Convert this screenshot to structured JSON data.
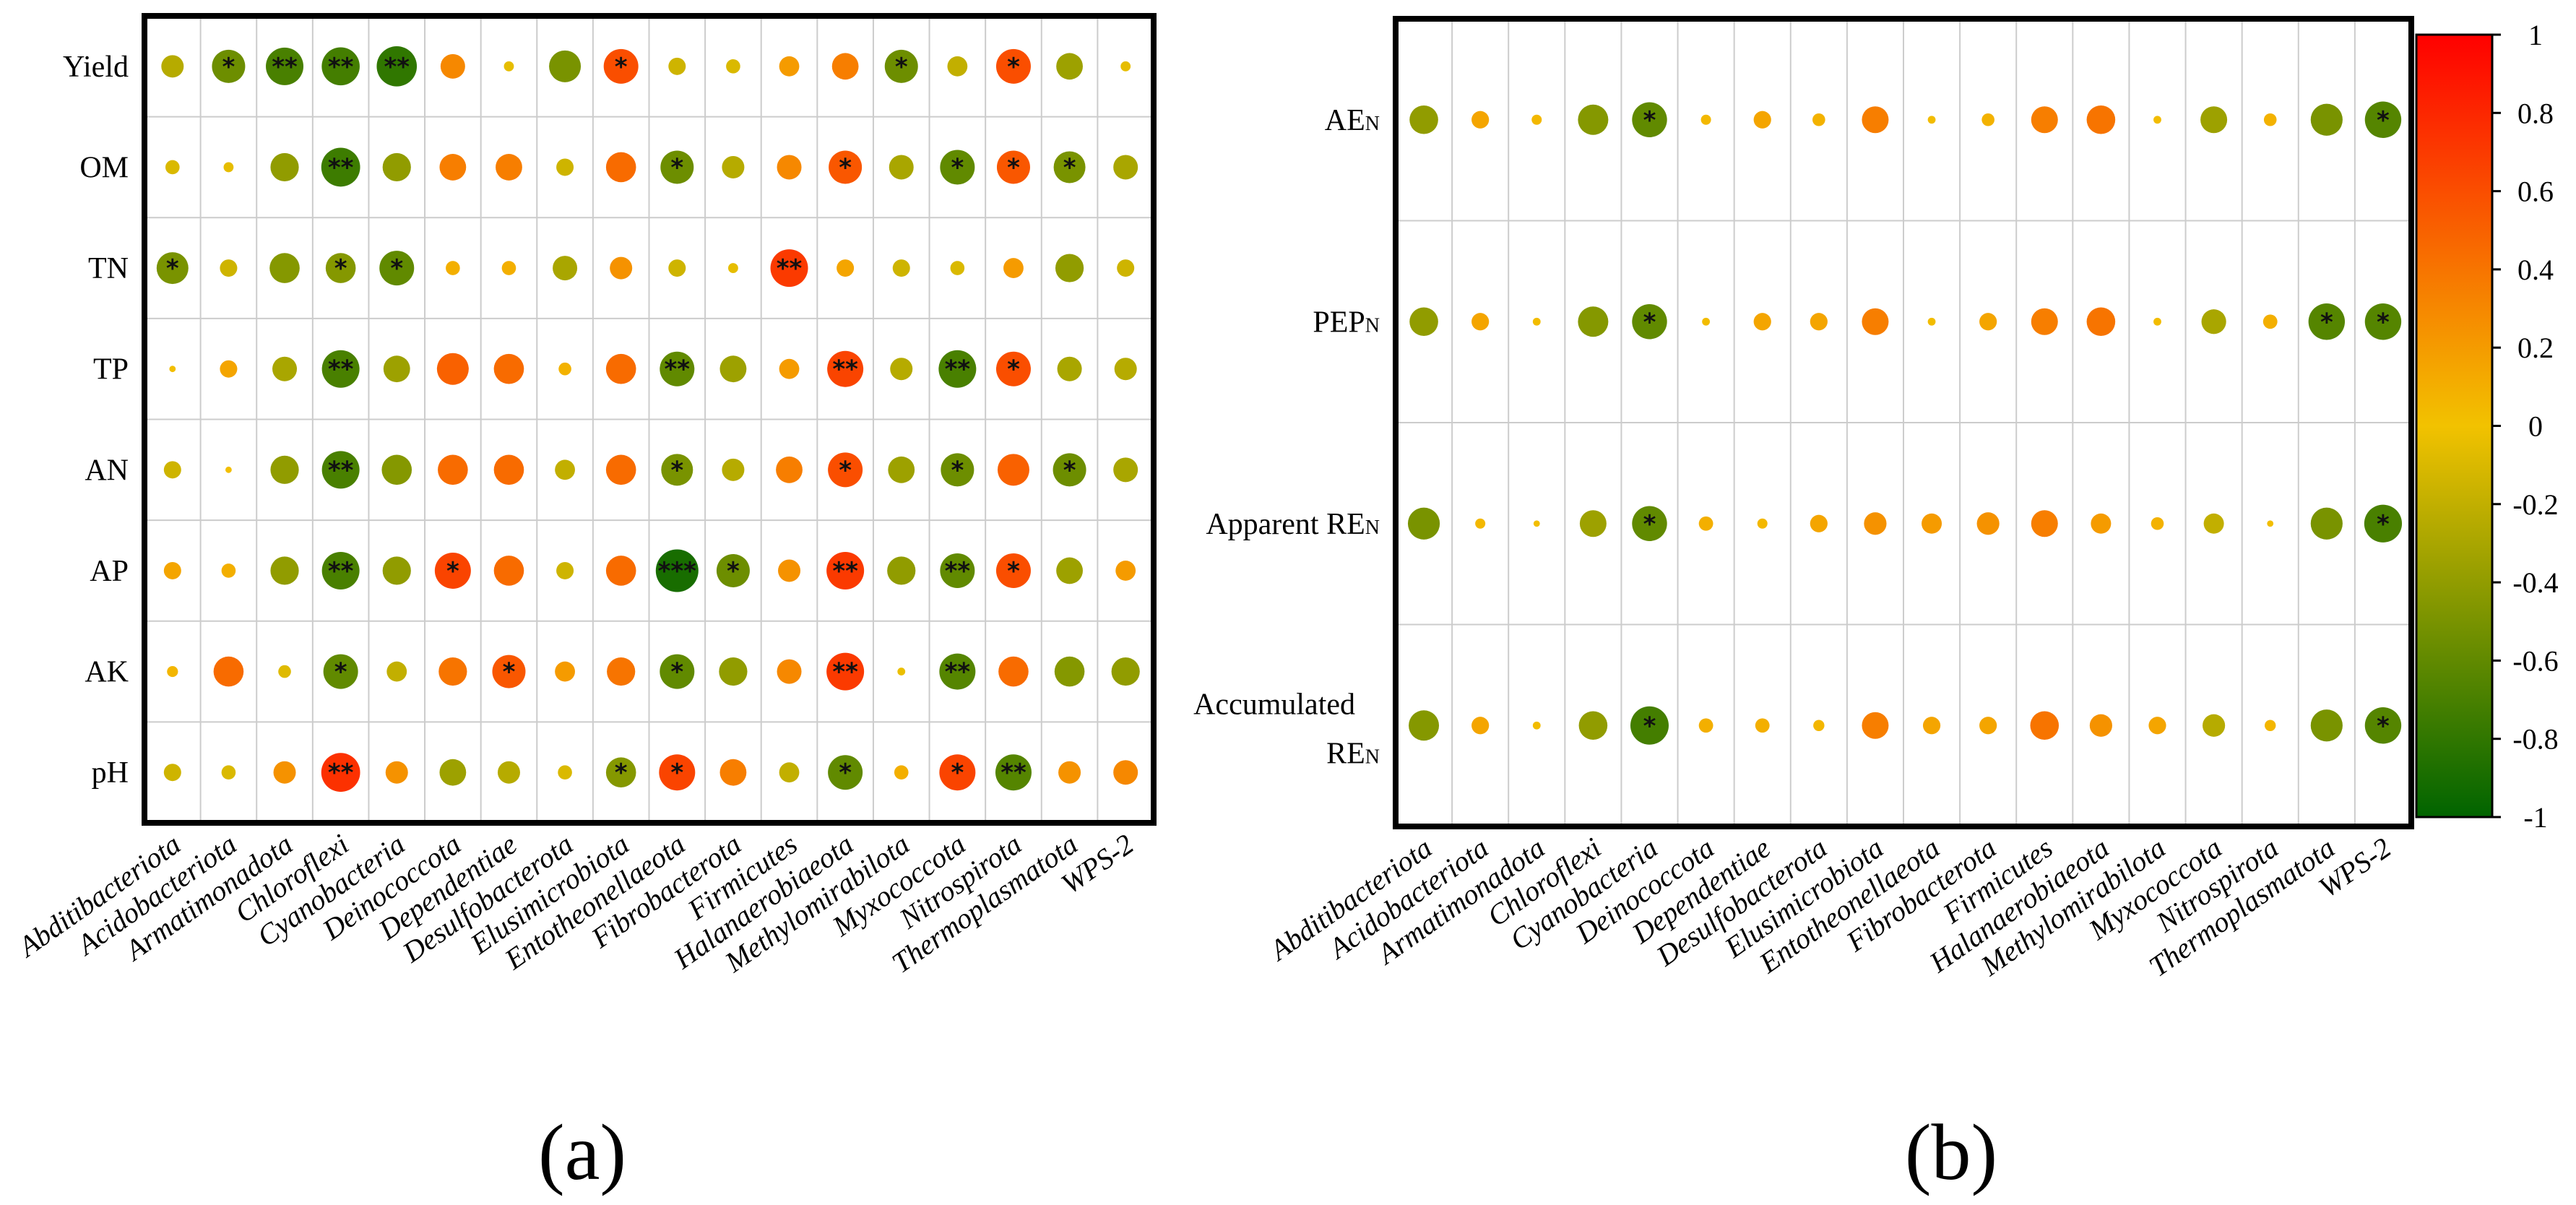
{
  "chart_data": [
    {
      "type": "heatmap",
      "panel_label": "(a)",
      "rows": [
        "Yield",
        "OM",
        "TN",
        "TP",
        "AN",
        "AP",
        "AK",
        "pH"
      ],
      "columns": [
        "Abditibacteriota",
        "Acidobacteriota",
        "Armatimonadota",
        "Chloroflexi",
        "Cyanobacteria",
        "Deinococcota",
        "Dependentiae",
        "Desulfobacterota",
        "Elusimicrobiota",
        "Entotheonellaeota",
        "Fibrobacterota",
        "Firmicutes",
        "Halanaerobiaeota",
        "Methylomirabilota",
        "Myxococcota",
        "Nitrospirota",
        "Thermoplasmatota",
        "WPS-2"
      ],
      "values": [
        [
          -0.25,
          -0.55,
          -0.7,
          -0.72,
          -0.8,
          0.3,
          -0.05,
          -0.5,
          0.6,
          -0.15,
          -0.1,
          0.2,
          0.35,
          -0.55,
          -0.2,
          0.6,
          -0.35,
          -0.05
        ],
        [
          -0.1,
          -0.05,
          -0.4,
          -0.75,
          -0.4,
          0.35,
          0.35,
          -0.15,
          0.45,
          -0.55,
          -0.25,
          0.3,
          0.55,
          -0.3,
          -0.6,
          0.55,
          -0.5,
          -0.3
        ],
        [
          -0.5,
          -0.15,
          -0.45,
          -0.45,
          -0.6,
          0.1,
          0.1,
          -0.3,
          0.25,
          -0.15,
          -0.05,
          0.7,
          0.15,
          -0.15,
          -0.1,
          0.2,
          -0.4,
          -0.15
        ],
        [
          0.02,
          0.15,
          -0.3,
          -0.7,
          -0.35,
          0.5,
          0.45,
          0.08,
          0.45,
          -0.6,
          -0.35,
          0.2,
          0.65,
          -0.25,
          -0.7,
          0.6,
          -0.3,
          -0.25
        ],
        [
          -0.15,
          0.02,
          -0.4,
          -0.7,
          -0.45,
          0.45,
          0.45,
          -0.2,
          0.45,
          -0.5,
          -0.25,
          0.35,
          0.6,
          -0.35,
          -0.55,
          0.5,
          -0.55,
          -0.3
        ],
        [
          0.15,
          0.1,
          -0.4,
          -0.7,
          -0.4,
          0.65,
          0.45,
          -0.15,
          0.45,
          -0.9,
          -0.55,
          0.25,
          0.7,
          -0.4,
          -0.6,
          0.6,
          -0.35,
          0.2
        ],
        [
          0.06,
          0.45,
          -0.08,
          -0.6,
          -0.2,
          0.4,
          0.55,
          0.2,
          0.4,
          -0.6,
          -0.4,
          0.3,
          0.7,
          -0.03,
          -0.65,
          0.45,
          -0.45,
          -0.4
        ],
        [
          -0.15,
          -0.1,
          0.25,
          0.75,
          0.25,
          -0.35,
          -0.25,
          -0.1,
          -0.45,
          0.65,
          0.35,
          -0.2,
          -0.6,
          0.1,
          0.65,
          -0.65,
          0.25,
          0.3
        ]
      ],
      "significance": [
        [
          "",
          "*",
          "**",
          "**",
          "**",
          "",
          "",
          "",
          "*",
          "",
          "",
          "",
          "",
          "*",
          "",
          "*",
          "",
          ""
        ],
        [
          "",
          "",
          "",
          "**",
          "",
          "",
          "",
          "",
          "",
          "*",
          "",
          "",
          "*",
          "",
          "*",
          "*",
          "*",
          ""
        ],
        [
          "*",
          "",
          "",
          "*",
          "*",
          "",
          "",
          "",
          "",
          "",
          "",
          "**",
          "",
          "",
          "",
          "",
          "",
          ""
        ],
        [
          "",
          "",
          "",
          "**",
          "",
          "",
          "",
          "",
          "",
          "**",
          "",
          "",
          "**",
          "",
          "**",
          "*",
          "",
          ""
        ],
        [
          "",
          "",
          "",
          "**",
          "",
          "",
          "",
          "",
          "",
          "*",
          "",
          "",
          "*",
          "",
          "*",
          "",
          "*",
          ""
        ],
        [
          "",
          "",
          "",
          "**",
          "",
          "*",
          "",
          "",
          "",
          "***",
          "*",
          "",
          "**",
          "",
          "**",
          "*",
          "",
          ""
        ],
        [
          "",
          "",
          "",
          "*",
          "",
          "",
          "*",
          "",
          "",
          "*",
          "",
          "",
          "**",
          "",
          "**",
          "",
          "",
          ""
        ],
        [
          "",
          "",
          "",
          "**",
          "",
          "",
          "",
          "",
          "*",
          "*",
          "",
          "",
          "*",
          "",
          "*",
          "**",
          "",
          ""
        ]
      ]
    },
    {
      "type": "heatmap",
      "panel_label": "(b)",
      "rows": [
        {
          "main": "AE",
          "sub": "N"
        },
        {
          "main": "PEP",
          "sub": "N"
        },
        {
          "main": "Apparent RE",
          "sub": "N"
        },
        {
          "line1": "Accumulated",
          "main": "RE",
          "sub": "N"
        }
      ],
      "columns": [
        "Abditibacteriota",
        "Acidobacteriota",
        "Armatimonadota",
        "Chloroflexi",
        "Cyanobacteria",
        "Deinococcota",
        "Dependentiae",
        "Desulfobacterota",
        "Elusimicrobiota",
        "Entotheonellaeota",
        "Fibrobacterota",
        "Firmicutes",
        "Halanaerobiaeota",
        "Methylomirabilota",
        "Myxococcota",
        "Nitrospirota",
        "Thermoplasmatota",
        "WPS-2"
      ],
      "values": [
        [
          -0.4,
          0.15,
          0.05,
          -0.45,
          -0.6,
          0.05,
          0.15,
          0.08,
          0.35,
          0.03,
          0.08,
          0.35,
          0.4,
          0.03,
          -0.35,
          0.08,
          -0.5,
          -0.65
        ],
        [
          -0.4,
          0.15,
          0.03,
          -0.45,
          -0.6,
          0.03,
          0.15,
          0.15,
          0.35,
          0.03,
          0.15,
          0.35,
          0.4,
          0.03,
          -0.3,
          0.1,
          -0.65,
          -0.65
        ],
        [
          -0.5,
          0.05,
          0.02,
          -0.35,
          -0.6,
          0.1,
          0.05,
          0.15,
          0.25,
          0.2,
          0.25,
          0.35,
          0.2,
          0.08,
          -0.2,
          0.02,
          -0.5,
          -0.7
        ],
        [
          -0.45,
          0.15,
          0.03,
          -0.4,
          -0.72,
          0.1,
          0.1,
          0.06,
          0.35,
          0.15,
          0.15,
          0.4,
          0.25,
          0.15,
          -0.25,
          0.06,
          -0.5,
          -0.65
        ]
      ],
      "significance": [
        [
          "",
          "",
          "",
          "",
          "*",
          "",
          "",
          "",
          "",
          "",
          "",
          "",
          "",
          "",
          "",
          "",
          "",
          "*"
        ],
        [
          "",
          "",
          "",
          "",
          "*",
          "",
          "",
          "",
          "",
          "",
          "",
          "",
          "",
          "",
          "",
          "",
          "*",
          "*"
        ],
        [
          "",
          "",
          "",
          "",
          "*",
          "",
          "",
          "",
          "",
          "",
          "",
          "",
          "",
          "",
          "",
          "",
          "",
          "*"
        ],
        [
          "",
          "",
          "",
          "",
          "*",
          "",
          "",
          "",
          "",
          "",
          "",
          "",
          "",
          "",
          "",
          "",
          "",
          "*"
        ]
      ],
      "colorbar": {
        "range": [
          -1,
          1
        ],
        "ticks": [
          "1",
          "0.8",
          "0.6",
          "0.4",
          "0.2",
          "0",
          "-0.2",
          "-0.4",
          "-0.6",
          "-0.8",
          "-1"
        ],
        "tick_values": [
          1,
          0.8,
          0.6,
          0.4,
          0.2,
          0,
          -0.2,
          -0.4,
          -0.6,
          -0.8,
          -1
        ],
        "colors": [
          "#006400",
          "#f2c200",
          "#ff0000"
        ]
      }
    }
  ]
}
